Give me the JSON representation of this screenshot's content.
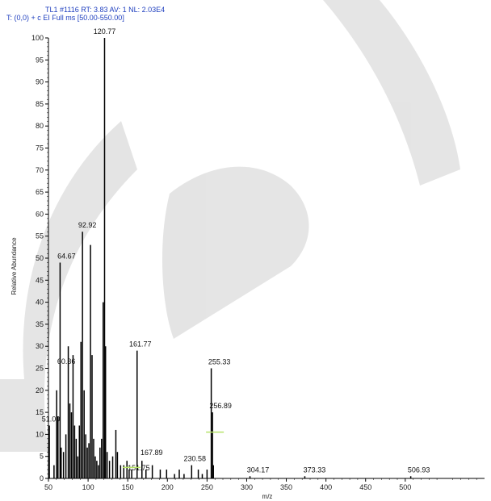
{
  "header": {
    "line1": "TL1 #1116   RT: 3.83   AV: 1   NL: 2.03E4",
    "line2": "T: (0,0)  + c EI Full ms [50.00-550.00]"
  },
  "colors": {
    "header_text": "#1f3fbf",
    "bars": "#000000",
    "highlight": "#b6e36a",
    "watermark": "#000000"
  },
  "chart_data": {
    "type": "bar",
    "xlabel": "m/z",
    "ylabel": "Relative Abundance",
    "xlim": [
      50,
      600
    ],
    "ylim": [
      0,
      100
    ],
    "x_ticks": [
      50,
      100,
      150,
      200,
      250,
      300,
      350,
      400,
      450,
      500
    ],
    "y_ticks": [
      0,
      5,
      10,
      15,
      20,
      25,
      30,
      35,
      40,
      45,
      50,
      55,
      60,
      65,
      70,
      75,
      80,
      85,
      90,
      95,
      100
    ],
    "peaks": [
      {
        "mz": 51.09,
        "value": 12,
        "label": "51.09"
      },
      {
        "mz": 57,
        "value": 3
      },
      {
        "mz": 60.36,
        "value": 20,
        "label": "60.36"
      },
      {
        "mz": 62,
        "value": 14
      },
      {
        "mz": 64.67,
        "value": 49,
        "label": "64.67"
      },
      {
        "mz": 66,
        "value": 7
      },
      {
        "mz": 69,
        "value": 6
      },
      {
        "mz": 72,
        "value": 10
      },
      {
        "mz": 75,
        "value": 30
      },
      {
        "mz": 77,
        "value": 17
      },
      {
        "mz": 79,
        "value": 15
      },
      {
        "mz": 81,
        "value": 28
      },
      {
        "mz": 83,
        "value": 12
      },
      {
        "mz": 85,
        "value": 9
      },
      {
        "mz": 87,
        "value": 5
      },
      {
        "mz": 89,
        "value": 12
      },
      {
        "mz": 91,
        "value": 31
      },
      {
        "mz": 92.92,
        "value": 56,
        "label": "92.92"
      },
      {
        "mz": 95,
        "value": 20
      },
      {
        "mz": 97,
        "value": 10
      },
      {
        "mz": 99,
        "value": 7
      },
      {
        "mz": 101,
        "value": 8
      },
      {
        "mz": 103,
        "value": 53
      },
      {
        "mz": 105,
        "value": 28
      },
      {
        "mz": 107,
        "value": 9
      },
      {
        "mz": 109,
        "value": 5
      },
      {
        "mz": 111,
        "value": 4
      },
      {
        "mz": 113,
        "value": 3
      },
      {
        "mz": 115,
        "value": 7
      },
      {
        "mz": 117,
        "value": 9
      },
      {
        "mz": 119,
        "value": 40
      },
      {
        "mz": 120.77,
        "value": 100,
        "label": "120.77"
      },
      {
        "mz": 122,
        "value": 30
      },
      {
        "mz": 124,
        "value": 6
      },
      {
        "mz": 127,
        "value": 4
      },
      {
        "mz": 131,
        "value": 5
      },
      {
        "mz": 135,
        "value": 11
      },
      {
        "mz": 137,
        "value": 6
      },
      {
        "mz": 141,
        "value": 3
      },
      {
        "mz": 145,
        "value": 3
      },
      {
        "mz": 149,
        "value": 4
      },
      {
        "mz": 151.75,
        "value": 2,
        "label": "151.75"
      },
      {
        "mz": 155,
        "value": 2
      },
      {
        "mz": 161.77,
        "value": 29,
        "label": "161.77"
      },
      {
        "mz": 167.89,
        "value": 4,
        "label": "167.89"
      },
      {
        "mz": 173,
        "value": 2
      },
      {
        "mz": 181,
        "value": 3
      },
      {
        "mz": 191,
        "value": 2
      },
      {
        "mz": 199,
        "value": 2
      },
      {
        "mz": 209,
        "value": 1
      },
      {
        "mz": 215,
        "value": 2
      },
      {
        "mz": 221,
        "value": 1
      },
      {
        "mz": 230.58,
        "value": 3,
        "label": "230.58"
      },
      {
        "mz": 239,
        "value": 2
      },
      {
        "mz": 244,
        "value": 1
      },
      {
        "mz": 250,
        "value": 2
      },
      {
        "mz": 255.33,
        "value": 25,
        "label": "255.33"
      },
      {
        "mz": 256.89,
        "value": 15,
        "label": "256.89"
      },
      {
        "mz": 258,
        "value": 3
      },
      {
        "mz": 304.17,
        "value": 0.5,
        "label": "304.17"
      },
      {
        "mz": 373.33,
        "value": 0.5,
        "label": "373.33"
      },
      {
        "mz": 506.93,
        "value": 0.5,
        "label": "506.93"
      }
    ]
  }
}
